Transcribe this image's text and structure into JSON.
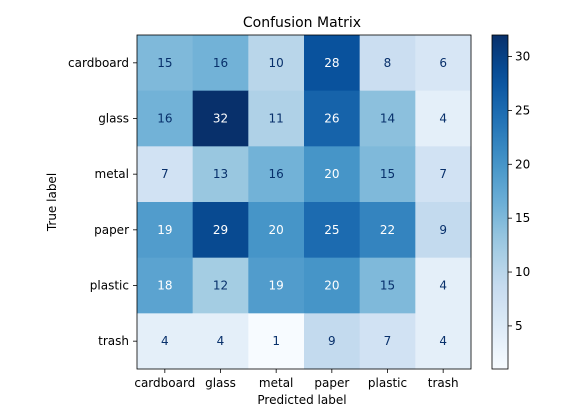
{
  "chart_data": {
    "type": "heatmap",
    "title": "Confusion Matrix",
    "xlabel": "Predicted label",
    "ylabel": "True label",
    "x_categories": [
      "cardboard",
      "glass",
      "metal",
      "paper",
      "plastic",
      "trash"
    ],
    "y_categories": [
      "cardboard",
      "glass",
      "metal",
      "paper",
      "plastic",
      "trash"
    ],
    "values": [
      [
        15,
        16,
        10,
        28,
        8,
        6
      ],
      [
        16,
        32,
        11,
        26,
        14,
        4
      ],
      [
        7,
        13,
        16,
        20,
        15,
        7
      ],
      [
        19,
        29,
        20,
        25,
        22,
        9
      ],
      [
        18,
        12,
        19,
        20,
        15,
        4
      ],
      [
        4,
        4,
        1,
        9,
        7,
        4
      ]
    ],
    "colormap": "Blues",
    "vmin": 1,
    "vmax": 32,
    "colorbar_ticks": [
      5,
      10,
      15,
      20,
      25,
      30
    ],
    "grid": false,
    "colors": {
      "low": "#f7fbff",
      "high": "#08306b",
      "text_dark": "#08306b",
      "text_light": "#ffffff"
    }
  }
}
